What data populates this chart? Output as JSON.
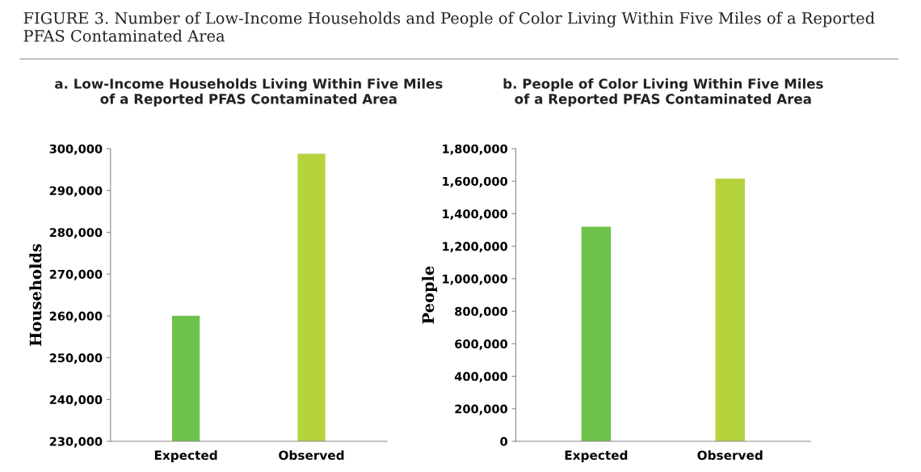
{
  "chart_data": [
    {
      "type": "bar",
      "title": "a. Low-Income Households Living Within Five Miles\nof a Reported PFAS Contaminated Area",
      "ylabel": "Households",
      "categories": [
        "Expected",
        "Observed"
      ],
      "values": [
        260000,
        298800
      ],
      "colors": [
        "#6cc24a",
        "#b5d33d"
      ],
      "ylim": [
        230000,
        300000
      ],
      "yticks": [
        {
          "value": 230000,
          "label": "230,000"
        },
        {
          "value": 240000,
          "label": "240,000"
        },
        {
          "value": 250000,
          "label": "250,000"
        },
        {
          "value": 260000,
          "label": "260,000"
        },
        {
          "value": 270000,
          "label": "270,000"
        },
        {
          "value": 280000,
          "label": "280,000"
        },
        {
          "value": 290000,
          "label": "290,000"
        },
        {
          "value": 300000,
          "label": "300,000"
        }
      ],
      "grid": false,
      "legend": false,
      "annotations": [
        "FIGURE 3. Number of Low-Income Households and People of Color Living Within Five Miles of a Reported PFAS Contaminated Area"
      ]
    },
    {
      "type": "bar",
      "title": "b. People of Color Living Within Five Miles\nof a Reported PFAS Contaminated Area",
      "ylabel": "People",
      "categories": [
        "Expected",
        "Observed"
      ],
      "values": [
        1320000,
        1616000
      ],
      "colors": [
        "#6cc24a",
        "#b5d33d"
      ],
      "ylim": [
        0,
        1800000
      ],
      "yticks": [
        0,
        {
          "value": 200000,
          "label": "200,000"
        },
        {
          "value": 400000,
          "label": "400,000"
        },
        {
          "value": 600000,
          "label": "600,000"
        },
        {
          "value": 800000,
          "label": "800,000"
        },
        {
          "value": 1000000,
          "label": "1,000,000"
        },
        {
          "value": 1200000,
          "label": "1,200,000"
        },
        {
          "value": 1400000,
          "label": "1,400,000"
        },
        {
          "value": 1600000,
          "label": "1,600,000"
        },
        {
          "value": 1800000,
          "label": "1,800,000"
        }
      ],
      "grid": false,
      "legend": false
    }
  ]
}
